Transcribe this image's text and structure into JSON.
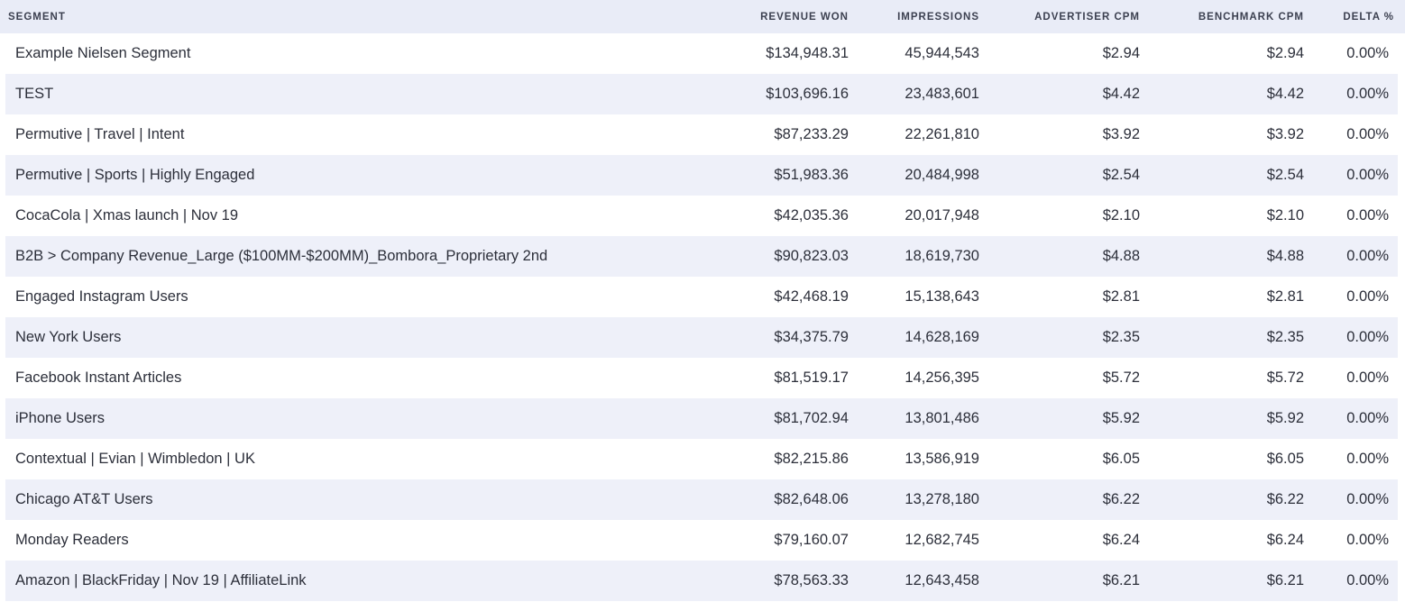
{
  "table": {
    "columns": {
      "segment": "SEGMENT",
      "revenue_won": "REVENUE WON",
      "impressions": "IMPRESSIONS",
      "advertiser_cpm": "ADVERTISER CPM",
      "benchmark_cpm": "BENCHMARK CPM",
      "delta_pct": "DELTA %"
    },
    "rows": [
      {
        "segment": "Example Nielsen Segment",
        "revenue_won": "$134,948.31",
        "impressions": "45,944,543",
        "advertiser_cpm": "$2.94",
        "benchmark_cpm": "$2.94",
        "delta_pct": "0.00%"
      },
      {
        "segment": "TEST",
        "revenue_won": "$103,696.16",
        "impressions": "23,483,601",
        "advertiser_cpm": "$4.42",
        "benchmark_cpm": "$4.42",
        "delta_pct": "0.00%"
      },
      {
        "segment": "Permutive | Travel | Intent",
        "revenue_won": "$87,233.29",
        "impressions": "22,261,810",
        "advertiser_cpm": "$3.92",
        "benchmark_cpm": "$3.92",
        "delta_pct": "0.00%"
      },
      {
        "segment": "Permutive | Sports | Highly Engaged",
        "revenue_won": "$51,983.36",
        "impressions": "20,484,998",
        "advertiser_cpm": "$2.54",
        "benchmark_cpm": "$2.54",
        "delta_pct": "0.00%"
      },
      {
        "segment": "CocaCola | Xmas launch | Nov 19",
        "revenue_won": "$42,035.36",
        "impressions": "20,017,948",
        "advertiser_cpm": "$2.10",
        "benchmark_cpm": "$2.10",
        "delta_pct": "0.00%"
      },
      {
        "segment": "B2B > Company Revenue_Large ($100MM-$200MM)_Bombora_Proprietary 2nd",
        "revenue_won": "$90,823.03",
        "impressions": "18,619,730",
        "advertiser_cpm": "$4.88",
        "benchmark_cpm": "$4.88",
        "delta_pct": "0.00%"
      },
      {
        "segment": "Engaged Instagram Users",
        "revenue_won": "$42,468.19",
        "impressions": "15,138,643",
        "advertiser_cpm": "$2.81",
        "benchmark_cpm": "$2.81",
        "delta_pct": "0.00%"
      },
      {
        "segment": "New York Users",
        "revenue_won": "$34,375.79",
        "impressions": "14,628,169",
        "advertiser_cpm": "$2.35",
        "benchmark_cpm": "$2.35",
        "delta_pct": "0.00%"
      },
      {
        "segment": "Facebook Instant Articles",
        "revenue_won": "$81,519.17",
        "impressions": "14,256,395",
        "advertiser_cpm": "$5.72",
        "benchmark_cpm": "$5.72",
        "delta_pct": "0.00%"
      },
      {
        "segment": "iPhone Users",
        "revenue_won": "$81,702.94",
        "impressions": "13,801,486",
        "advertiser_cpm": "$5.92",
        "benchmark_cpm": "$5.92",
        "delta_pct": "0.00%"
      },
      {
        "segment": "Contextual | Evian | Wimbledon | UK",
        "revenue_won": "$82,215.86",
        "impressions": "13,586,919",
        "advertiser_cpm": "$6.05",
        "benchmark_cpm": "$6.05",
        "delta_pct": "0.00%"
      },
      {
        "segment": "Chicago AT&T Users",
        "revenue_won": "$82,648.06",
        "impressions": "13,278,180",
        "advertiser_cpm": "$6.22",
        "benchmark_cpm": "$6.22",
        "delta_pct": "0.00%"
      },
      {
        "segment": "Monday Readers",
        "revenue_won": "$79,160.07",
        "impressions": "12,682,745",
        "advertiser_cpm": "$6.24",
        "benchmark_cpm": "$6.24",
        "delta_pct": "0.00%"
      },
      {
        "segment": "Amazon | BlackFriday | Nov 19 | AffiliateLink",
        "revenue_won": "$78,563.33",
        "impressions": "12,643,458",
        "advertiser_cpm": "$6.21",
        "benchmark_cpm": "$6.21",
        "delta_pct": "0.00%"
      }
    ]
  },
  "colors": {
    "header_bg": "#e9ecf7",
    "stripe_bg": "#eef0f9",
    "text": "#2c2f3a"
  }
}
